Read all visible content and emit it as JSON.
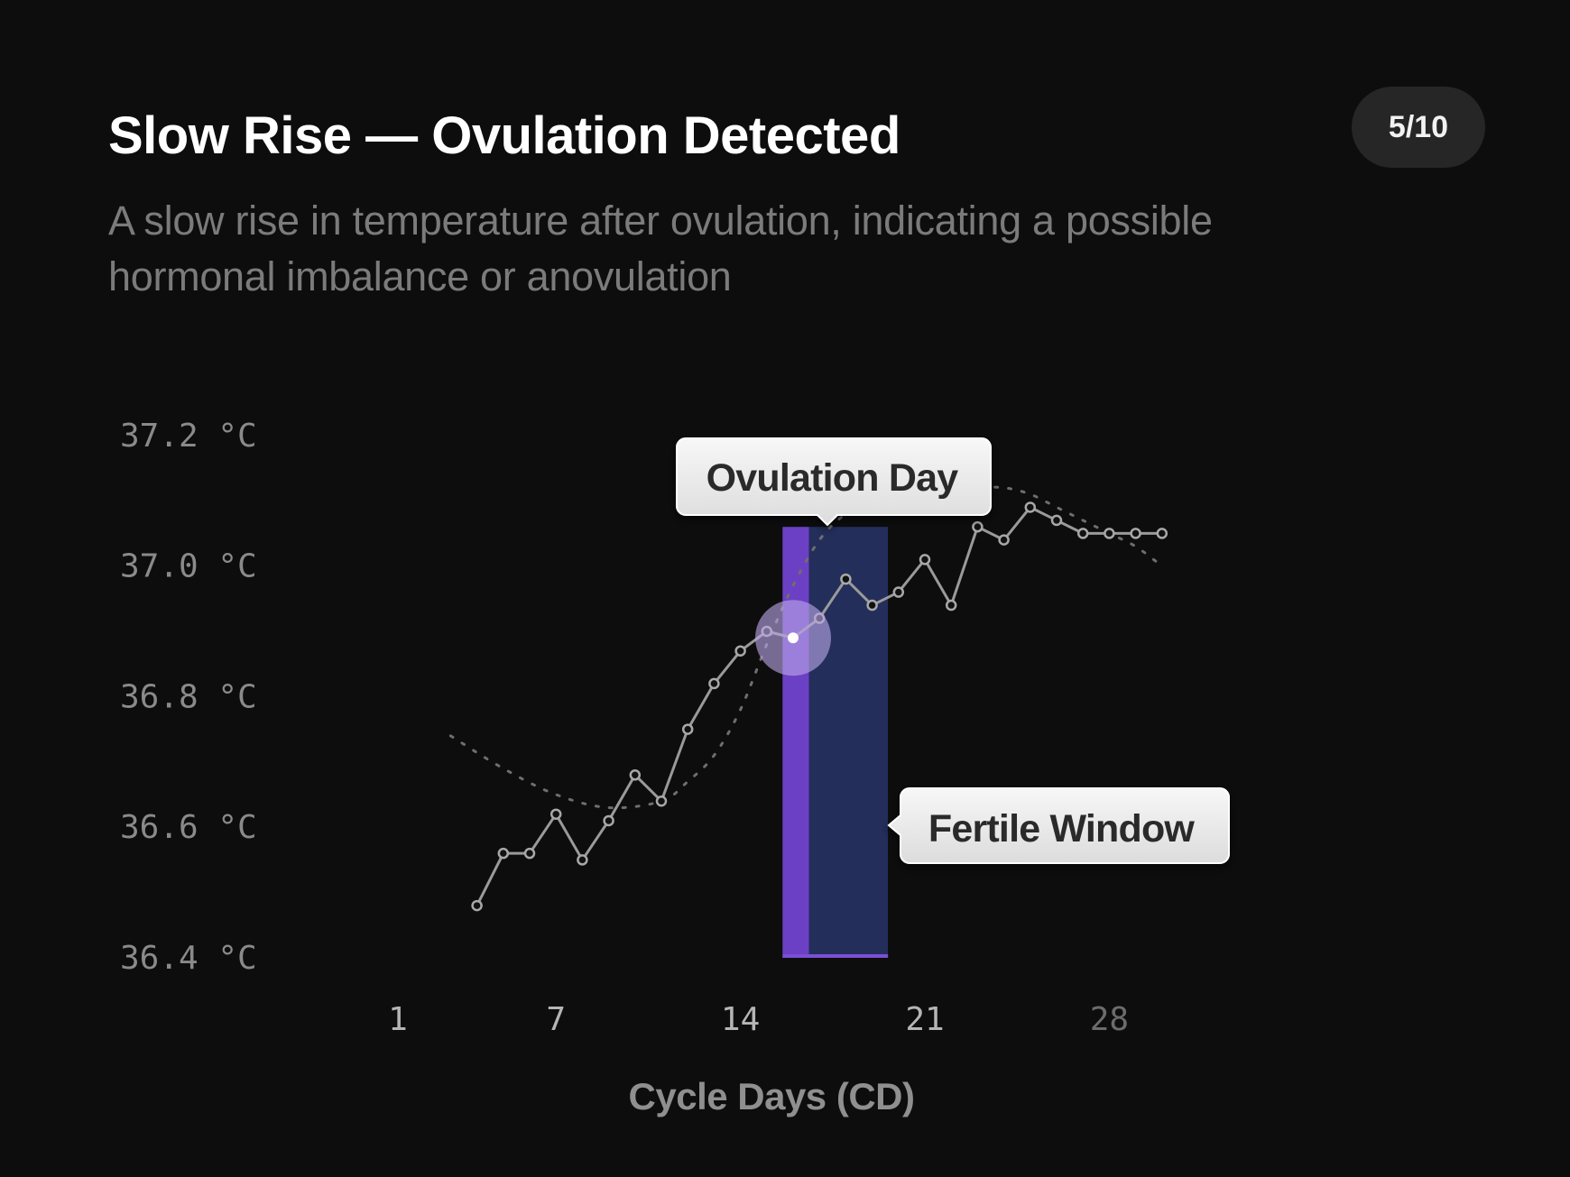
{
  "header": {
    "title": "Slow Rise — Ovulation Detected",
    "subtitle": "A slow rise in temperature after ovulation, indicating a possible hormonal imbalance or anovulation",
    "page_indicator": "5/10"
  },
  "colors": {
    "background": "#0d0d0d",
    "ovulation_band": "#6c40c4",
    "fertile_band": "#232e5b",
    "temperature_line": "#9a9a9a",
    "trend_line": "#6e6e6e",
    "highlight_halo": "#b9a6e6"
  },
  "chart_data": {
    "type": "line",
    "title": "",
    "xlabel": "Cycle Days (CD)",
    "ylabel": "",
    "x_ticks": [
      1,
      7,
      14,
      21,
      28
    ],
    "y_ticks": [
      "37.2 °C",
      "37.0 °C",
      "36.8 °C",
      "36.6 °C",
      "36.4 °C"
    ],
    "y_tick_values": [
      37.2,
      37.0,
      36.8,
      36.6,
      36.4
    ],
    "xlim": [
      1,
      28
    ],
    "ylim": [
      36.4,
      37.2
    ],
    "grid": true,
    "series": [
      {
        "type": "line-markers",
        "x": [
          4,
          5,
          6,
          7,
          8,
          9,
          10,
          11,
          12,
          13,
          14,
          15,
          16,
          17,
          18,
          19,
          20,
          21,
          22,
          23,
          24,
          25,
          26,
          27,
          28,
          29,
          30
        ],
        "values": [
          36.48,
          36.56,
          36.56,
          36.62,
          36.55,
          36.61,
          36.68,
          36.64,
          36.75,
          36.82,
          36.87,
          36.9,
          36.89,
          36.92,
          36.98,
          36.94,
          36.96,
          37.01,
          36.94,
          37.06,
          37.04,
          37.09,
          37.07,
          37.05,
          37.05,
          37.05,
          37.05
        ]
      },
      {
        "type": "dotted-trend",
        "x": [
          3,
          5,
          7,
          9,
          11,
          12,
          13,
          14,
          15,
          16,
          17,
          18,
          19,
          20,
          21,
          22,
          23,
          24,
          25,
          26,
          27,
          28,
          29,
          30
        ],
        "values": [
          36.74,
          36.69,
          36.65,
          36.63,
          36.64,
          36.67,
          36.71,
          36.78,
          36.88,
          36.97,
          37.04,
          37.08,
          37.1,
          37.11,
          37.12,
          37.12,
          37.12,
          37.12,
          37.11,
          37.09,
          37.07,
          37.05,
          37.03,
          37.0
        ]
      }
    ],
    "ovulation_day": 16,
    "ovulation_band": [
      15.6,
      16.6
    ],
    "fertile_window": [
      16.6,
      19.6
    ],
    "annotations": [
      {
        "label": "Ovulation Day"
      },
      {
        "label": "Fertile Window"
      }
    ]
  }
}
